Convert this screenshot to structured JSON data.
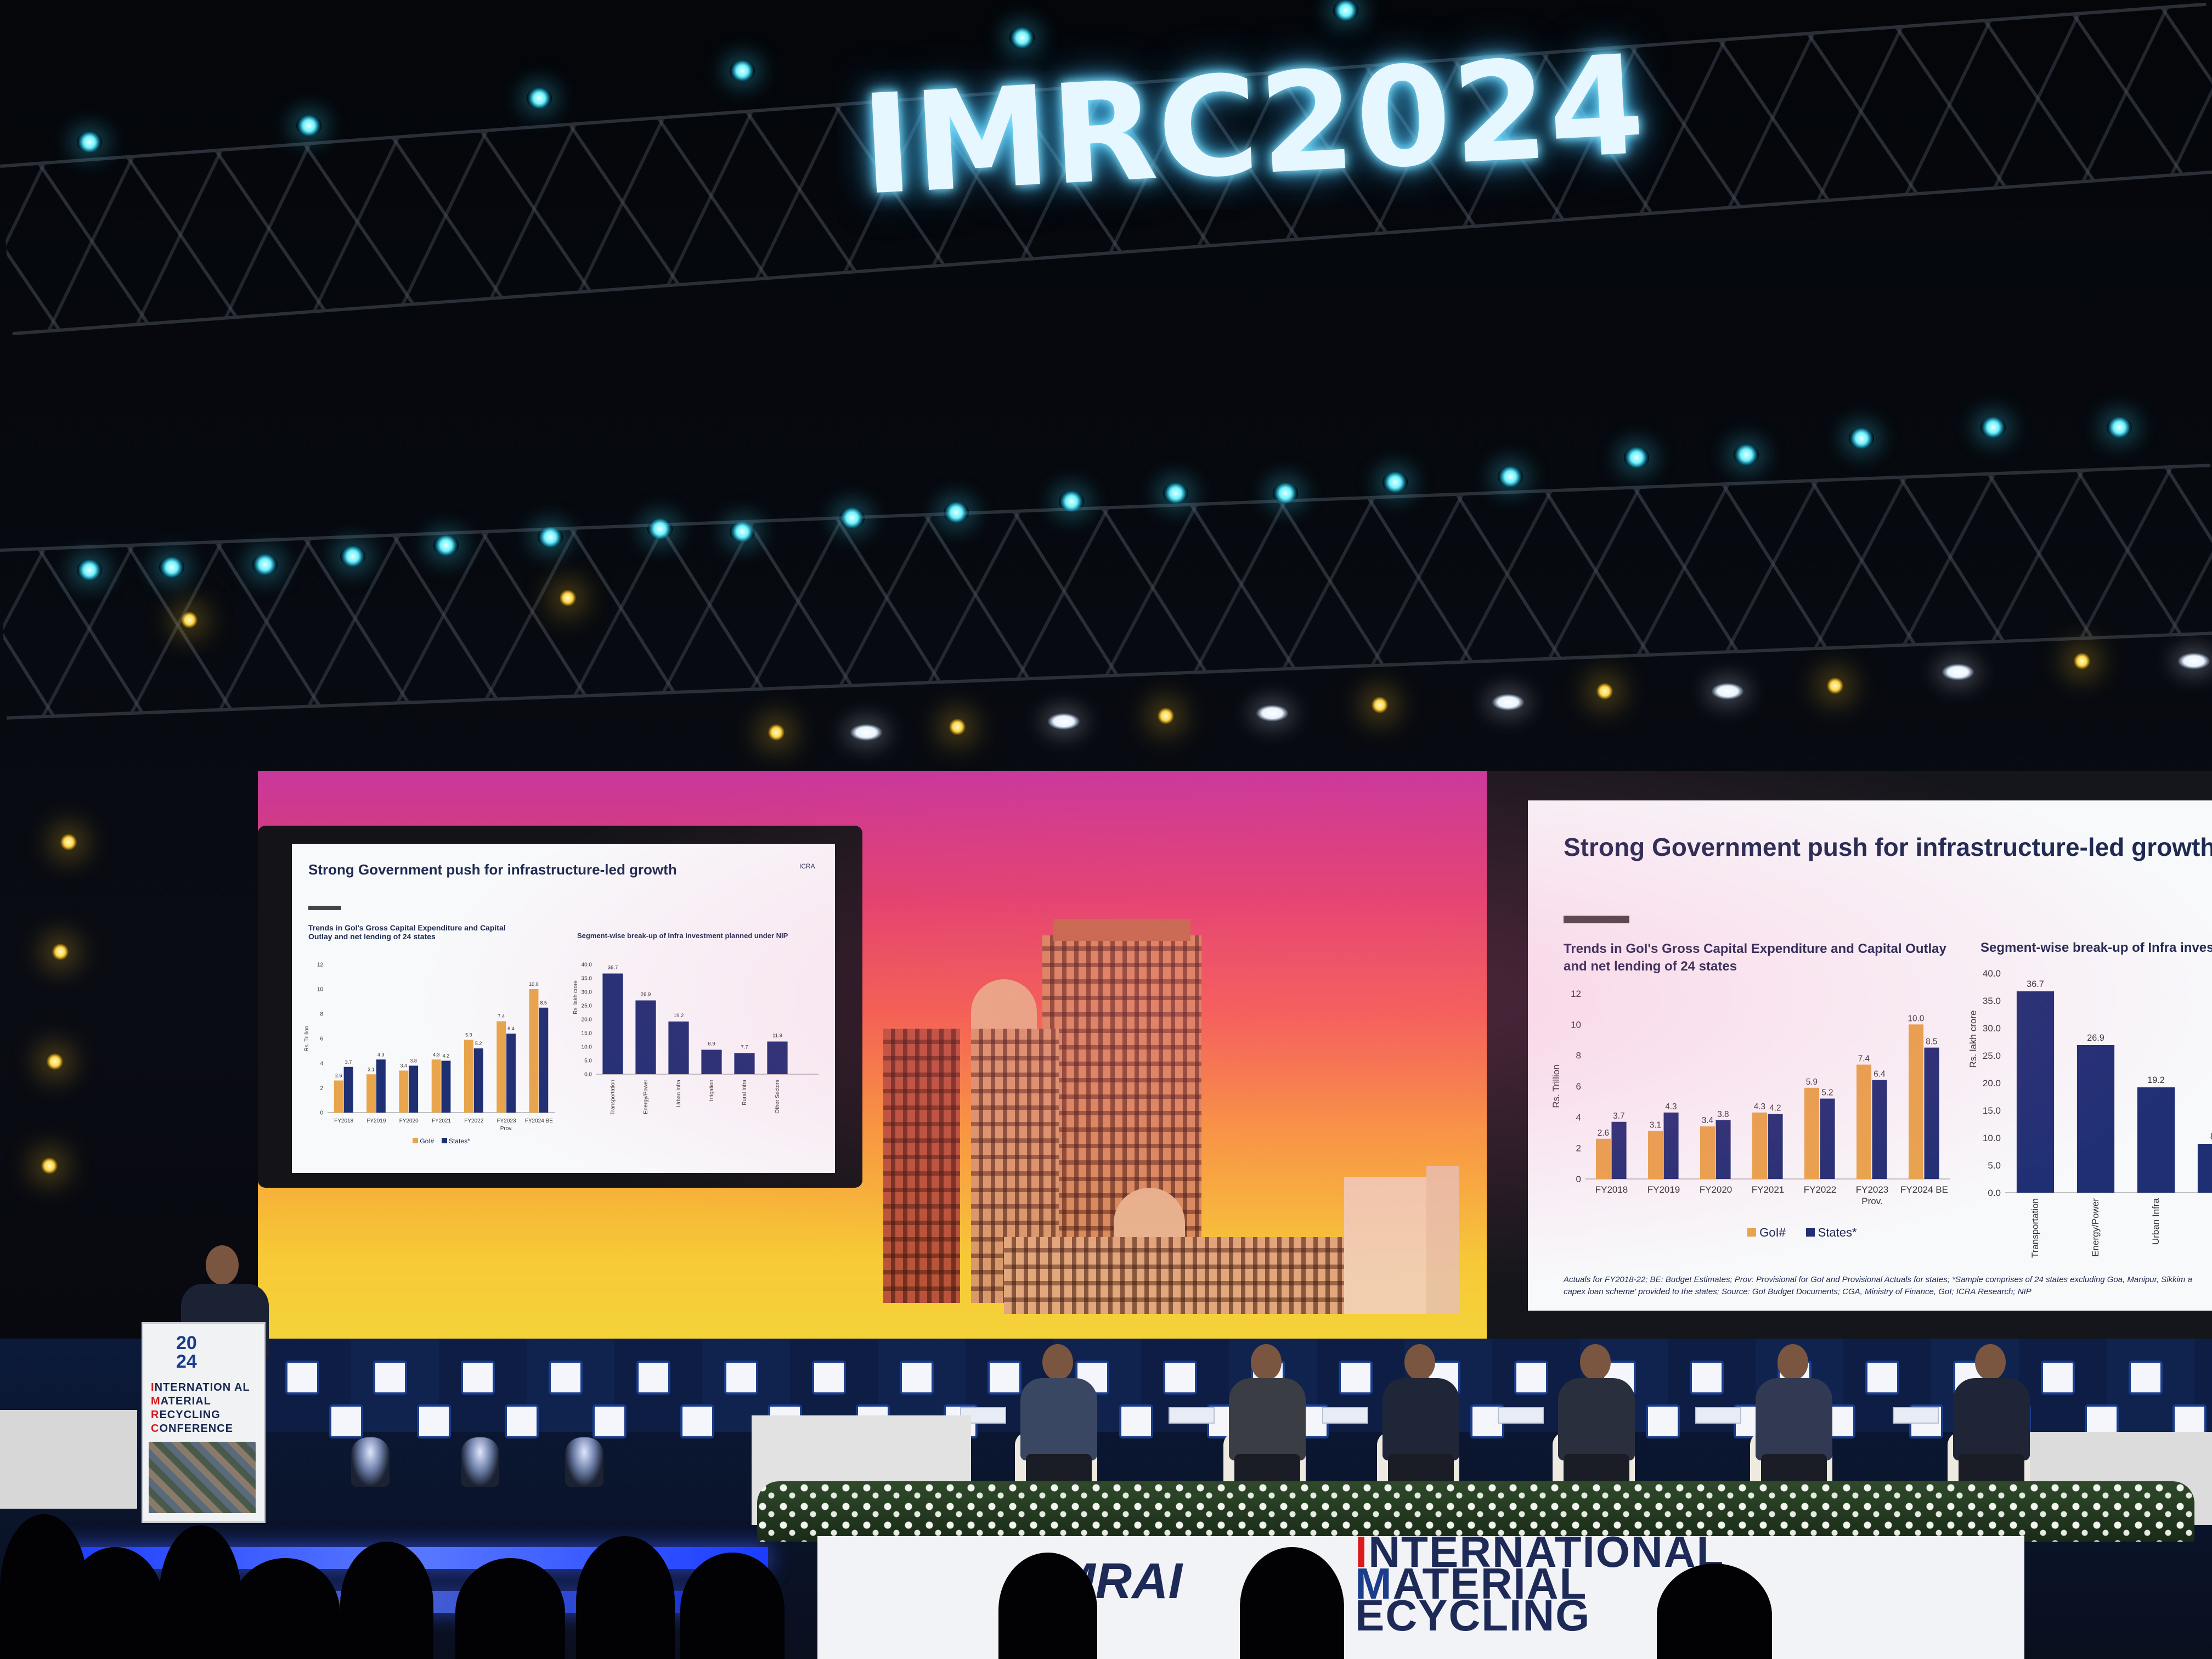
{
  "event_sign": "IMRC2024",
  "podium": {
    "year_top": "20",
    "year_bottom": "24",
    "lines": [
      {
        "cap": "I",
        "rest": "NTERNATION AL"
      },
      {
        "cap": "M",
        "rest": "ATERIAL"
      },
      {
        "cap": "R",
        "rest": "ECYCLING"
      },
      {
        "cap": "C",
        "rest": "ONFERENCE"
      }
    ]
  },
  "banner": {
    "logo": "MRAI",
    "lines": [
      {
        "cap": "I",
        "rest": "NTERNATIONAL"
      },
      {
        "cap": "M",
        "rest": "ATERIAL"
      },
      {
        "cap": "",
        "rest": "ECYCLING"
      }
    ]
  },
  "slide_left": {
    "title": "Strong Government push for infrastructure-led growth",
    "logo_text": "ICRA",
    "left_chart_caption": "Trends in GoI's Gross Capital Expenditure and Capital Outlay and net lending of 24 states",
    "right_chart_caption": "Segment-wise break-up of Infra investment planned under NIP",
    "y_axis_left": "Rs. Trillion",
    "y_axis_right": "Rs. lakh crore",
    "legend": [
      "GoI#",
      "States*"
    ]
  },
  "slide_right": {
    "title": "Strong Government push for infrastructure-led growth",
    "left_chart_caption": "Trends in GoI's Gross Capital Expenditure and Capital Outlay and net lending of 24 states",
    "right_chart_caption": "Segment-wise break-up of Infra investme",
    "legend": [
      "GoI#",
      "States*"
    ],
    "footnote_1": "Actuals for FY2018-22; BE: Budget Estimates; Prov: Provisional for GoI and Provisional Actuals for states; *Sample comprises of 24 states excluding Goa, Manipur, Sikkim a",
    "footnote_2": "capex loan scheme' provided to the states; Source: GoI Budget Documents; CGA, Ministry of Finance, GoI; ICRA Research; NIP"
  },
  "chart_data": [
    {
      "type": "bar",
      "title": "Trends in GoI's Gross Capital Expenditure and Capital Outlay and net lending of 24 states",
      "categories": [
        "FY2018",
        "FY2019",
        "FY2020",
        "FY2021",
        "FY2022",
        "FY2023 Prov.",
        "FY2024 BE"
      ],
      "series": [
        {
          "name": "GoI#",
          "values": [
            2.6,
            3.1,
            3.4,
            4.3,
            5.9,
            7.4,
            10.0
          ]
        },
        {
          "name": "States*",
          "values": [
            3.7,
            4.3,
            3.8,
            4.2,
            5.2,
            6.4,
            8.5
          ]
        }
      ],
      "value_labels": {
        "GoI#": [
          "2.6",
          "3.1",
          "3.4",
          "4.3",
          "5.9",
          "7.4",
          "10.0"
        ],
        "States*": [
          "3.7",
          "4.3",
          "3.8",
          "4.2",
          "5.2",
          "6.4",
          "8.5"
        ]
      },
      "ylabel": "Rs. Trillion",
      "ylim": [
        0,
        12
      ],
      "yticks": [
        0,
        2,
        4,
        6,
        8,
        10,
        12
      ],
      "grid": false,
      "legend": "bottom",
      "colors": {
        "GoI#": "#e8a54b",
        "States*": "#1f2f74"
      }
    },
    {
      "type": "bar",
      "title": "Segment-wise break-up of Infra investment planned under NIP",
      "categories": [
        "Transportation",
        "Energy/Power",
        "Urban Infra",
        "Irrigation",
        "Rural Infra",
        "Other Sectors"
      ],
      "values": [
        36.7,
        26.9,
        19.2,
        8.9,
        7.7,
        11.9
      ],
      "value_labels": [
        "36.7",
        "26.9",
        "19.2",
        "8.9",
        "7.7",
        "11.9"
      ],
      "ylabel": "Rs. lakh crore",
      "ylim": [
        0,
        40
      ],
      "yticks": [
        "0.0",
        "5.0",
        "10.0",
        "15.0",
        "20.0",
        "25.0",
        "30.0",
        "35.0",
        "40.0"
      ],
      "grid": false,
      "colors": {
        "bars": "#1f2f74"
      }
    }
  ],
  "colors": {
    "sign_glow": "#6fdcff",
    "slide_navy": "#1f2f74",
    "slide_amber": "#e8a54b",
    "backdrop_top": "#c8379c",
    "backdrop_bottom": "#f5d33a"
  }
}
